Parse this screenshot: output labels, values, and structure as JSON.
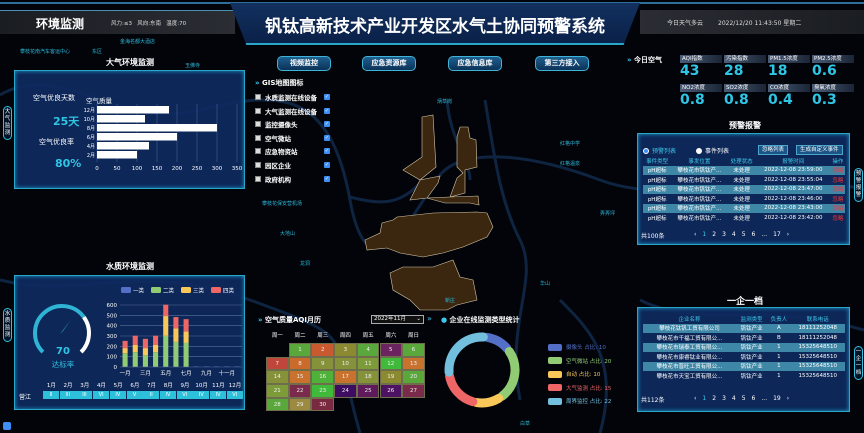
{
  "header": {
    "section_title": "环境监测",
    "weather_info": "风力:≤3   风向:东南   温度:70",
    "title": "钒钛高新技术产业开发区水气土协同预警系统",
    "today_weather": "今日天气多云",
    "datetime": "2022/12/20 11:43:50 星期二"
  },
  "side_tabs": {
    "air": "大气监测",
    "water": "水质监测",
    "alarm": "预警报警",
    "enterprise": "一企一档"
  },
  "nav_buttons": [
    "视频监控",
    "应急资源库",
    "应急信息库",
    "第三方接入"
  ],
  "gis": {
    "title": "GIS地图图标",
    "items": [
      {
        "label": "水质监测在线设备",
        "checked": true
      },
      {
        "label": "大气监测在线设备",
        "checked": true
      },
      {
        "label": "监控摄像头",
        "checked": true
      },
      {
        "label": "空气微站",
        "checked": true
      },
      {
        "label": "应急物资站",
        "checked": true
      },
      {
        "label": "园区企业",
        "checked": true
      },
      {
        "label": "政府机构",
        "checked": true
      }
    ]
  },
  "air_panel": {
    "title": "大气环境监测",
    "good_days_label": "空气优良天数",
    "good_days_value": "25天",
    "good_rate_label": "空气优良率",
    "good_rate_value": "80%",
    "chart_title": "空气质量"
  },
  "chart_data": [
    {
      "type": "bar",
      "orientation": "horizontal",
      "title": "空气质量",
      "categories": [
        "12月",
        "10月",
        "8月",
        "6月",
        "4月",
        "2月"
      ],
      "values": [
        180,
        120,
        300,
        200,
        130,
        100
      ],
      "xlim": [
        0,
        350
      ],
      "xticks": [
        0,
        50,
        100,
        150,
        200,
        250,
        300,
        350
      ],
      "grid": true,
      "color": "#ffffff"
    },
    {
      "type": "bar",
      "stacked": true,
      "categories": [
        "1月",
        "2月",
        "3月",
        "4月",
        "5月",
        "6月",
        "7月",
        "8月",
        "9月",
        "10月",
        "11月",
        "12月"
      ],
      "xtick_labels": [
        "一月",
        "三月",
        "五月",
        "七月",
        "九月",
        "十一月"
      ],
      "series": [
        {
          "name": "一类",
          "color": "#5470c6",
          "values": [
            3,
            3,
            3,
            3,
            3,
            3,
            3,
            5,
            5,
            5,
            5,
            5
          ]
        },
        {
          "name": "二类",
          "color": "#91cc75",
          "values": [
            130,
            140,
            110,
            140,
            300,
            240,
            230,
            0,
            0,
            0,
            0,
            0
          ]
        },
        {
          "name": "三类",
          "color": "#fac858",
          "values": [
            50,
            70,
            70,
            70,
            190,
            130,
            110,
            0,
            0,
            0,
            0,
            0
          ]
        },
        {
          "name": "四类",
          "color": "#ee6666",
          "values": [
            70,
            90,
            90,
            90,
            110,
            110,
            120,
            0,
            0,
            0,
            0,
            0
          ]
        }
      ],
      "ylim": [
        0,
        600
      ],
      "yticks": [
        0,
        100,
        200,
        300,
        400,
        500,
        600
      ],
      "legend": "top",
      "grid": true
    },
    {
      "type": "pie",
      "variant": "donut",
      "title": "企业在线监测类型统计",
      "slices": [
        {
          "name": "摄像头",
          "label": "摄像头 占比: 10",
          "value": 10,
          "color": "#5470c6"
        },
        {
          "name": "空气微站",
          "label": "空气微站 占比: 20",
          "value": 20,
          "color": "#91cc75"
        },
        {
          "name": "自动",
          "label": "自动 占比: 10",
          "value": 10,
          "color": "#fac858"
        },
        {
          "name": "大气监测",
          "label": "大气监测 占比: 15",
          "value": 15,
          "color": "#ee6666"
        },
        {
          "name": "周界监控",
          "label": "周界监控 占比: 22",
          "value": 22,
          "color": "#73c0de"
        }
      ],
      "legend": "right"
    }
  ],
  "water_panel": {
    "title": "水质环境监测",
    "gauge_value": 70,
    "gauge_value_text": "70",
    "gauge_max": 100,
    "gauge_label": "达标率",
    "grade_table": {
      "months": [
        "1月",
        "2月",
        "3月",
        "4月",
        "5月",
        "6月",
        "7月",
        "8月",
        "9月",
        "10月",
        "11月",
        "12月"
      ],
      "row_label": "营江",
      "grades": [
        "II",
        "III",
        "III",
        "VI",
        "IV",
        "V",
        "II",
        "IV",
        "VI",
        "IV",
        "IV",
        "VI"
      ]
    }
  },
  "today_air": {
    "title": "今日空气",
    "items": [
      {
        "label": "AQI指数",
        "value": "43"
      },
      {
        "label": "污染指数",
        "value": "28"
      },
      {
        "label": "PM1.5浓度",
        "value": "18"
      },
      {
        "label": "PM2.5浓度",
        "value": "0.6"
      },
      {
        "label": "NO2浓度",
        "value": "0.8"
      },
      {
        "label": "SO2浓度",
        "value": "0.8"
      },
      {
        "label": "CO浓度",
        "value": "0.4"
      },
      {
        "label": "臭氧浓度",
        "value": "0.3"
      }
    ]
  },
  "alarm": {
    "title": "预警报警",
    "radio_alarm": "预警列表",
    "radio_event": "事件列表",
    "ignore_button": "忽略列表",
    "create_button": "生成自定义事件",
    "columns": [
      "事件类型",
      "事发位置",
      "处理状态",
      "报警时间",
      "操作"
    ],
    "rows": [
      [
        "pH超标",
        "攀枝花市钒钛产...",
        "未处理",
        "2022-12-08 23:59:00",
        "忽略"
      ],
      [
        "pH超标",
        "攀枝花市钒钛产...",
        "未处理",
        "2022-12-08 23:55:04",
        "忽略"
      ],
      [
        "pH超标",
        "攀枝花市钒钛产...",
        "未处理",
        "2022-12-08 23:47:00",
        "忽略"
      ],
      [
        "pH超标",
        "攀枝花市钒钛产...",
        "未处理",
        "2022-12-08 23:46:00",
        "忽略"
      ],
      [
        "pH超标",
        "攀枝花市钒钛产...",
        "未处理",
        "2022-12-08 23:43:00",
        "忽略"
      ],
      [
        "pH超标",
        "攀枝花市钒钛产...",
        "未处理",
        "2022-12-08 23:42:00",
        "忽略"
      ]
    ],
    "total": "共100条",
    "pages": [
      "1",
      "2",
      "3",
      "4",
      "5",
      "6",
      "...",
      "17"
    ],
    "current_page": "1"
  },
  "enterprise": {
    "title": "一企一档",
    "columns": [
      "企业名称",
      "监测类型",
      "负责人",
      "联系电话"
    ],
    "rows": [
      [
        "攀枝花钛钒工贸有限公司",
        "钒钛产业",
        "A",
        "18111252048"
      ],
      [
        "攀枝花市千福工贸有限公...",
        "钒钛产业",
        "B",
        "18111252048"
      ],
      [
        "攀枝花市瑞泰工贸有限公...",
        "钒钛产业",
        "1",
        "15325648510"
      ],
      [
        "攀枝花市康睿钛业有限公...",
        "钒钛产业",
        "1",
        "15325648510"
      ],
      [
        "攀枝花市晋旺工贸有限公...",
        "钒钛产业",
        "1",
        "15325648510"
      ],
      [
        "攀枝花市天宝工贸有限公...",
        "钒钛产业",
        "1",
        "15325648510"
      ]
    ],
    "total": "共112条",
    "pages": [
      "1",
      "2",
      "3",
      "4",
      "5",
      "6",
      "...",
      "19"
    ],
    "current_page": "1"
  },
  "aqi_calendar": {
    "title": "空气质量AQI月历",
    "month_select": "2022年11月",
    "weekdays": [
      "周一",
      "周二",
      "周三",
      "周四",
      "周五",
      "周六",
      "周日"
    ],
    "first_weekday_index": 1,
    "days": [
      {
        "day": "1",
        "color": "#5aa83c"
      },
      {
        "day": "2",
        "color": "#c9592e"
      },
      {
        "day": "3",
        "color": "#8c8a30"
      },
      {
        "day": "4",
        "color": "#5aa83c"
      },
      {
        "day": "5",
        "color": "#6b2460"
      },
      {
        "day": "6",
        "color": "#5aa83c"
      },
      {
        "day": "7",
        "color": "#c0453a"
      },
      {
        "day": "8",
        "color": "#cc6a2c"
      },
      {
        "day": "9",
        "color": "#86923a"
      },
      {
        "day": "10",
        "color": "#86923a"
      },
      {
        "day": "11",
        "color": "#7e9b3a"
      },
      {
        "day": "12",
        "color": "#3fba3a"
      },
      {
        "day": "13",
        "color": "#c8722e"
      },
      {
        "day": "14",
        "color": "#86923a"
      },
      {
        "day": "15",
        "color": "#c8722e"
      },
      {
        "day": "16",
        "color": "#4fb03a"
      },
      {
        "day": "17",
        "color": "#c8722e"
      },
      {
        "day": "18",
        "color": "#86923a"
      },
      {
        "day": "19",
        "color": "#8c8a30"
      },
      {
        "day": "20",
        "color": "#5aa83c"
      },
      {
        "day": "21",
        "color": "#7e9b3a"
      },
      {
        "day": "22",
        "color": "#7a2a4a"
      },
      {
        "day": "23",
        "color": "#3fba3a"
      },
      {
        "day": "24",
        "color": "#3e0c60"
      },
      {
        "day": "25",
        "color": "#5e1a5a"
      },
      {
        "day": "26",
        "color": "#4e1262"
      },
      {
        "day": "27",
        "color": "#7a2a4a"
      },
      {
        "day": "28",
        "color": "#5aa83c"
      },
      {
        "day": "29",
        "color": "#9c8a40"
      },
      {
        "day": "30",
        "color": "#7a2a40"
      }
    ]
  },
  "map_labels": [
    "金海名都大酒店",
    "攀枝花南汽车客运中心",
    "东区",
    "玉佛寺",
    "攀枝花保安营机场",
    "炳草岗",
    "弄弄坪",
    "华山",
    "红格中学",
    "红格温泉",
    "大地山",
    "龙洞",
    "新庄",
    "白草"
  ],
  "colors": {
    "accent": "#2fc6e6",
    "panel": "#0e2a60",
    "map_fill": "#3b2710",
    "danger": "#ff3333"
  }
}
